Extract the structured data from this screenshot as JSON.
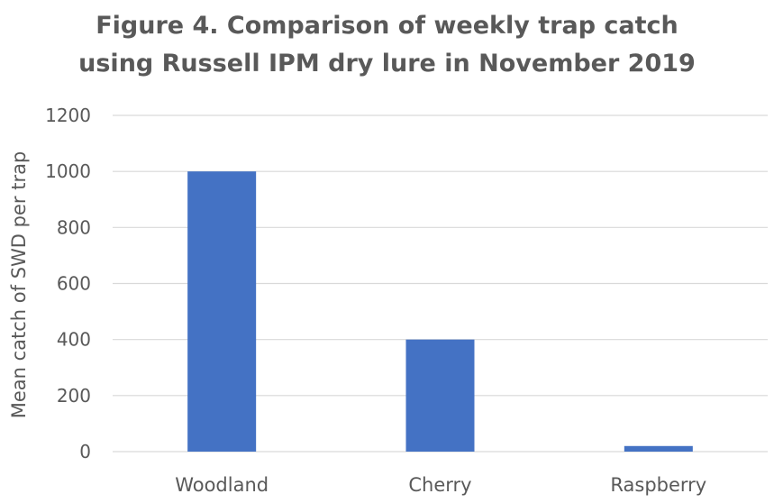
{
  "chart_data": {
    "type": "bar",
    "title_lines": [
      "Figure 4. Comparison of weekly trap catch",
      "using Russell IPM dry lure in November 2019"
    ],
    "categories": [
      "Woodland",
      "Cherry",
      "Raspberry"
    ],
    "values": [
      1000,
      400,
      20
    ],
    "xlabel": "",
    "ylabel": "Mean catch of SWD per trap",
    "ylim": [
      0,
      1200
    ],
    "yticks": [
      0,
      200,
      400,
      600,
      800,
      1000,
      1200
    ],
    "grid": true,
    "legend": "none",
    "colors": {
      "bar": "#4472C4",
      "grid": "#d9d9d9",
      "text": "#595959"
    }
  }
}
